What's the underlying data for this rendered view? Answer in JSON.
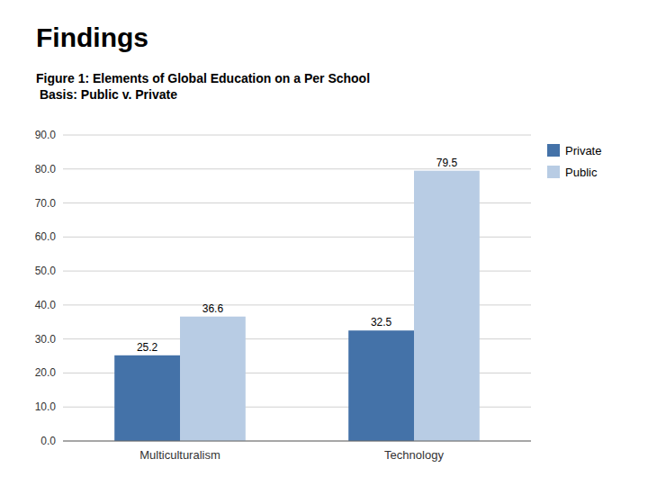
{
  "chart_data": {
    "type": "bar",
    "title": "Findings",
    "subtitle": "Figure 1: Elements of Global Education on a Per School\n Basis: Public v. Private",
    "categories": [
      "Multiculturalism",
      "Technology"
    ],
    "series": [
      {
        "name": "Private",
        "color": "#4472A8",
        "values": [
          25.2,
          32.5
        ]
      },
      {
        "name": "Public",
        "color": "#B8CCE4",
        "values": [
          36.6,
          79.5
        ]
      }
    ],
    "ylim": [
      0,
      90
    ],
    "yticks": [
      {
        "value": 0.0,
        "label": "0.0"
      },
      {
        "value": 10.0,
        "label": "10.0"
      },
      {
        "value": 20.0,
        "label": "20.0"
      },
      {
        "value": 30.0,
        "label": "30.0"
      },
      {
        "value": 40.0,
        "label": "40.0"
      },
      {
        "value": 50.0,
        "label": "50.0"
      },
      {
        "value": 60.0,
        "label": "60.0"
      },
      {
        "value": 70.0,
        "label": "70.0"
      },
      {
        "value": 80.0,
        "label": "80.0"
      },
      {
        "value": 90.0,
        "label": "90.0"
      }
    ],
    "grid": true,
    "legend": "upper right",
    "data_labels": true
  }
}
